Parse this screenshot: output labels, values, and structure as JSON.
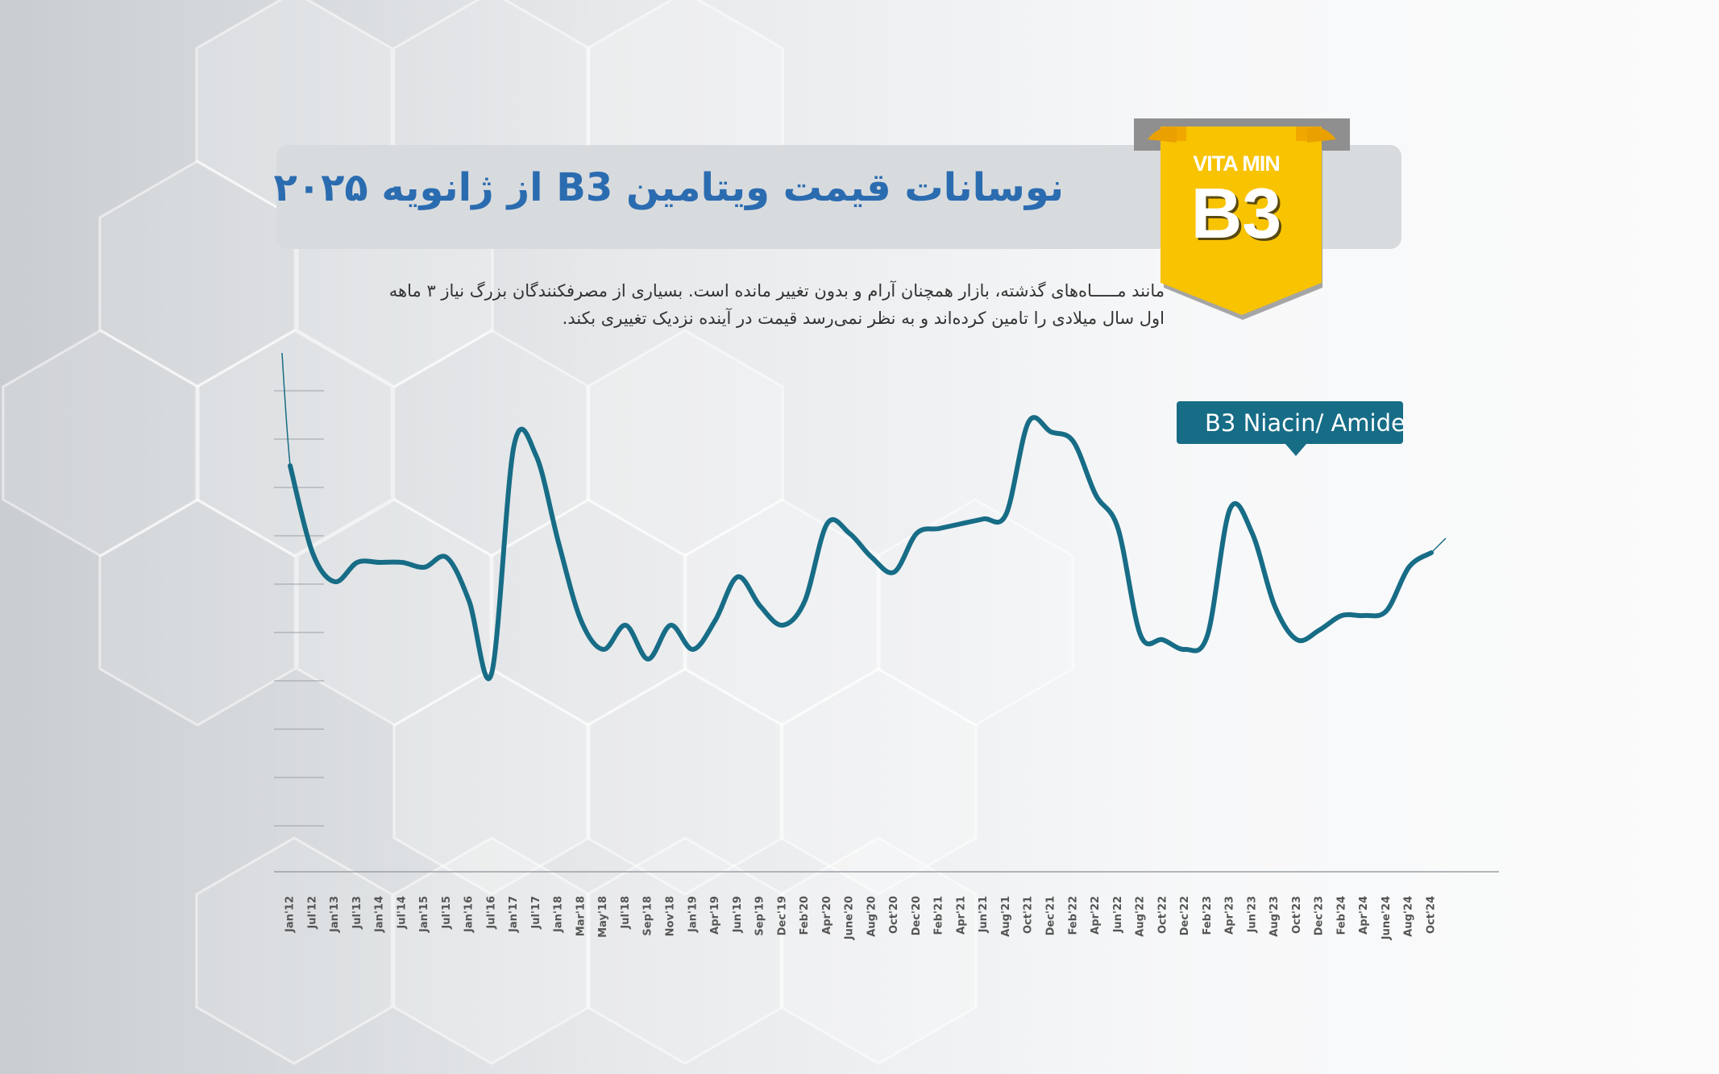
{
  "title": "نوسانات قیمت ویتامین B3 از ژانویه ۲۰۲۵",
  "description": "مانند مـــــاه‌های گذشته، بازار همچنان آرام و بدون تغییر مانده است. بسیاری از مصرفکنندگان بزرگ نیاز ۳ ماهه اول سال میلادی را تامین کرده‌اند و به نظر نمی‌رسد قیمت در آینده نزدیک تغییری بکند.",
  "badge": {
    "top": "VITA MIN",
    "main": "B3"
  },
  "colors": {
    "line": "#176c86",
    "title": "#2b6cb0",
    "badge": "#f5b800",
    "legend_bg": "#176c86"
  },
  "chart_data": {
    "type": "line",
    "legend_placement": "top-right",
    "grid": false,
    "x_labels": [
      "Jan'12",
      "Jul'12",
      "Jan'13",
      "Jul'13",
      "Jan'14",
      "Jul'14",
      "Jan'15",
      "Jul'15",
      "Jan'16",
      "Jul'16",
      "Jan'17",
      "Jul'17",
      "Jan'18",
      "Mar'18",
      "May'18",
      "Jul'18",
      "Sep'18",
      "Nov'18",
      "Jan'19",
      "Apr'19",
      "Jun'19",
      "Sep'19",
      "Dec'19",
      "Feb'20",
      "Apr'20",
      "June'20",
      "Aug'20",
      "Oct'20",
      "Dec'20",
      "Feb'21",
      "Apr'21",
      "Jun'21",
      "Aug'21",
      "Oct'21",
      "Dec'21",
      "Feb'22",
      "Apr'22",
      "Jun'22",
      "Aug'22",
      "Oct'22",
      "Dec'22",
      "Feb'23",
      "Apr'23",
      "Jun'23",
      "Aug'23",
      "Oct'23",
      "Dec'23",
      "Feb'24",
      "Apr'24",
      "June'24",
      "Aug'24",
      "Oct'24"
    ],
    "series": [
      {
        "name": "B3 Niacin/ Amide",
        "values": [
          7.4,
          5.6,
          5.0,
          5.4,
          5.4,
          5.4,
          5.3,
          5.5,
          4.6,
          3.1,
          7.8,
          7.6,
          5.8,
          4.2,
          3.6,
          4.1,
          3.4,
          4.1,
          3.6,
          4.2,
          5.1,
          4.5,
          4.1,
          4.6,
          6.2,
          6.0,
          5.5,
          5.2,
          6.0,
          6.1,
          6.2,
          6.3,
          6.4,
          8.3,
          8.1,
          7.9,
          6.8,
          6.1,
          3.9,
          3.8,
          3.6,
          3.9,
          6.5,
          6.0,
          4.5,
          3.8,
          4.0,
          4.3,
          4.3,
          4.4,
          5.3,
          5.6
        ]
      }
    ]
  }
}
